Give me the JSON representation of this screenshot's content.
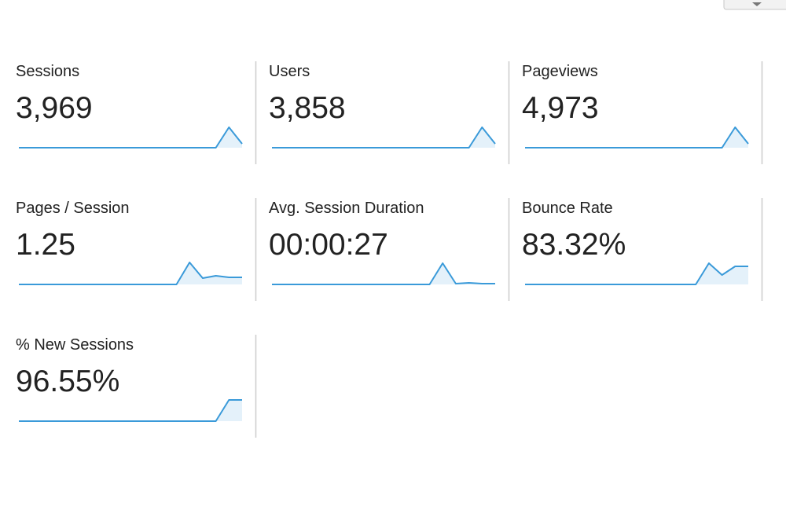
{
  "metrics": [
    {
      "label": "Sessions",
      "value": "3,969",
      "spark": [
        0,
        0,
        0,
        0,
        0,
        0,
        0,
        0,
        0,
        0,
        0,
        0,
        0,
        0,
        0,
        0,
        26,
        5
      ]
    },
    {
      "label": "Users",
      "value": "3,858",
      "spark": [
        0,
        0,
        0,
        0,
        0,
        0,
        0,
        0,
        0,
        0,
        0,
        0,
        0,
        0,
        0,
        0,
        26,
        5
      ]
    },
    {
      "label": "Pageviews",
      "value": "4,973",
      "spark": [
        0,
        0,
        0,
        0,
        0,
        0,
        0,
        0,
        0,
        0,
        0,
        0,
        0,
        0,
        0,
        0,
        26,
        5
      ]
    },
    {
      "label": "Pages / Session",
      "value": "1.25",
      "spark": [
        0,
        0,
        0,
        0,
        0,
        0,
        0,
        0,
        0,
        0,
        0,
        0,
        0,
        28,
        8,
        11,
        9,
        9
      ]
    },
    {
      "label": "Avg. Session Duration",
      "value": "00:00:27",
      "spark": [
        0,
        0,
        0,
        0,
        0,
        0,
        0,
        0,
        0,
        0,
        0,
        0,
        0,
        27,
        1,
        2,
        1,
        1
      ]
    },
    {
      "label": "Bounce Rate",
      "value": "83.32%",
      "spark": [
        0,
        0,
        0,
        0,
        0,
        0,
        0,
        0,
        0,
        0,
        0,
        0,
        0,
        0,
        27,
        12,
        23,
        23
      ]
    },
    {
      "label": "% New Sessions",
      "value": "96.55%",
      "spark": [
        0,
        0,
        0,
        0,
        0,
        0,
        0,
        0,
        0,
        0,
        0,
        0,
        0,
        0,
        0,
        0,
        27,
        27
      ]
    }
  ]
}
